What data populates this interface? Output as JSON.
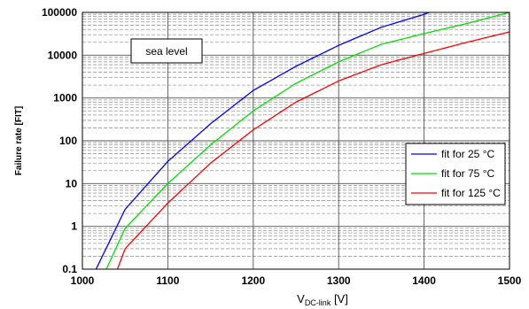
{
  "chart_data": {
    "type": "line",
    "title": "",
    "ylabel": "Failure  rate [FIT]",
    "xlabel_main": "V",
    "xlabel_sub": "DC-link",
    "xlabel_unit": " [V]",
    "xlim": [
      1000,
      1500
    ],
    "ylim": [
      0.1,
      100000
    ],
    "yscale": "log",
    "grid": true,
    "x_ticks": [
      1000,
      1100,
      1200,
      1300,
      1400,
      1500
    ],
    "y_ticks": [
      "0.1",
      "1",
      "10",
      "100",
      "1000",
      "10000",
      "100000"
    ],
    "annotation": "sea level",
    "legend_position": "right",
    "series": [
      {
        "name": "fit for 25 °C",
        "color": "#0000ff",
        "x": [
          1016,
          1050,
          1100,
          1150,
          1200,
          1250,
          1300,
          1350,
          1400,
          1406
        ],
        "y": [
          0.1,
          2.5,
          33,
          250,
          1500,
          5500,
          17000,
          45000,
          90000,
          100000
        ]
      },
      {
        "name": "fit for 75 °C",
        "color": "#00e000",
        "x": [
          1028,
          1050,
          1100,
          1150,
          1200,
          1250,
          1300,
          1350,
          1400,
          1450,
          1500
        ],
        "y": [
          0.1,
          0.9,
          10,
          80,
          500,
          2200,
          7000,
          18000,
          32000,
          55000,
          100000
        ]
      },
      {
        "name": "fit for 125 °C",
        "color": "#ff0000",
        "x": [
          1041,
          1050,
          1100,
          1150,
          1200,
          1250,
          1300,
          1350,
          1400,
          1450,
          1500
        ],
        "y": [
          0.1,
          0.3,
          3.5,
          30,
          180,
          800,
          2500,
          6000,
          11000,
          20000,
          35000
        ]
      }
    ]
  }
}
